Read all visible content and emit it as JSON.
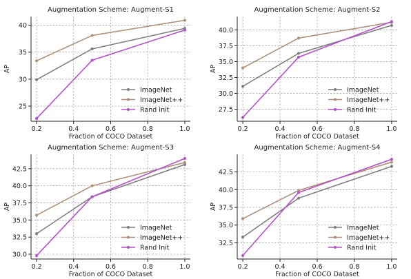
{
  "chart_data": [
    {
      "type": "line",
      "title": "Augmentation Scheme: Augment-S1",
      "xlabel": "Fraction of COCO Dataset",
      "ylabel": "AP",
      "x": [
        0.2,
        0.5,
        1.0
      ],
      "xticks": [
        "0.2",
        "0.4",
        "0.6",
        "0.8",
        "1.0"
      ],
      "xlim": [
        0.17,
        1.03
      ],
      "yticks": [
        "25",
        "30",
        "35",
        "40"
      ],
      "ylim": [
        22.2,
        41.6
      ],
      "grid": true,
      "legend_position": "lower-right",
      "series": [
        {
          "name": "ImageNet",
          "values": [
            29.9,
            35.6,
            39.4
          ],
          "color": "#7f7f7f"
        },
        {
          "name": "ImageNet++",
          "values": [
            33.4,
            38.1,
            40.9
          ],
          "color": "#b09178"
        },
        {
          "name": "Rand Init",
          "values": [
            22.7,
            33.5,
            39.1
          ],
          "color": "#b452c9"
        }
      ]
    },
    {
      "type": "line",
      "title": "Augmentation Scheme: Augment-S2",
      "xlabel": "Fraction of COCO Dataset",
      "ylabel": "AP",
      "x": [
        0.2,
        0.5,
        1.0
      ],
      "xticks": [
        "0.2",
        "0.4",
        "0.6",
        "0.8",
        "1.0"
      ],
      "xlim": [
        0.17,
        1.03
      ],
      "yticks": [
        "27.5",
        "30.0",
        "32.5",
        "35.0",
        "37.5",
        "40.0"
      ],
      "ylim": [
        25.6,
        42.1
      ],
      "grid": true,
      "legend_position": "lower-right",
      "series": [
        {
          "name": "ImageNet",
          "values": [
            31.1,
            36.3,
            40.7
          ],
          "color": "#7f7f7f"
        },
        {
          "name": "ImageNet++",
          "values": [
            34.0,
            38.7,
            41.2
          ],
          "color": "#b09178"
        },
        {
          "name": "Rand Init",
          "values": [
            26.2,
            35.7,
            41.3
          ],
          "color": "#b452c9"
        }
      ]
    },
    {
      "type": "line",
      "title": "Augmentation Scheme: Augment-S3",
      "xlabel": "Fraction of COCO Dataset",
      "ylabel": "AP",
      "x": [
        0.2,
        0.5,
        1.0
      ],
      "xticks": [
        "0.2",
        "0.4",
        "0.6",
        "0.8",
        "1.0"
      ],
      "xlim": [
        0.17,
        1.03
      ],
      "yticks": [
        "30.0",
        "32.5",
        "35.0",
        "37.5",
        "40.0",
        "42.5"
      ],
      "ylim": [
        29.3,
        44.6
      ],
      "grid": true,
      "legend_position": "lower-right",
      "series": [
        {
          "name": "ImageNet",
          "values": [
            33.0,
            38.4,
            43.1
          ],
          "color": "#7f7f7f"
        },
        {
          "name": "ImageNet++",
          "values": [
            35.7,
            40.0,
            43.4
          ],
          "color": "#b09178"
        },
        {
          "name": "Rand Init",
          "values": [
            29.8,
            38.4,
            44.0
          ],
          "color": "#b452c9"
        }
      ]
    },
    {
      "type": "line",
      "title": "Augmentation Scheme: Augment-S4",
      "xlabel": "Fraction of COCO Dataset",
      "ylabel": "AP",
      "x": [
        0.2,
        0.5,
        1.0
      ],
      "xticks": [
        "0.2",
        "0.4",
        "0.6",
        "0.8",
        "1.0"
      ],
      "xlim": [
        0.17,
        1.03
      ],
      "yticks": [
        "32.5",
        "35.0",
        "37.5",
        "40.0",
        "42.5"
      ],
      "ylim": [
        30.2,
        45.0
      ],
      "grid": true,
      "legend_position": "lower-right",
      "series": [
        {
          "name": "ImageNet",
          "values": [
            33.3,
            38.8,
            43.3
          ],
          "color": "#7f7f7f"
        },
        {
          "name": "ImageNet++",
          "values": [
            35.9,
            39.9,
            43.9
          ],
          "color": "#b09178"
        },
        {
          "name": "Rand Init",
          "values": [
            30.7,
            39.6,
            44.3
          ],
          "color": "#b452c9"
        }
      ]
    }
  ]
}
